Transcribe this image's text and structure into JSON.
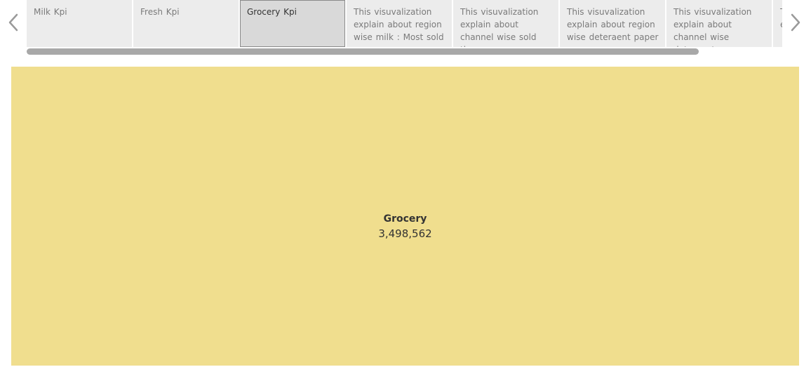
{
  "story": {
    "points": [
      {
        "label": "Milk Kpi",
        "active": false
      },
      {
        "label": "Fresh Kpi",
        "active": false
      },
      {
        "label": "Grocery Kpi",
        "active": true
      },
      {
        "label": "This visuvalization explain about  region wise milk : Most sold",
        "active": false
      },
      {
        "label": " This visuvalization explain about  channel wise sold the",
        "active": false
      },
      {
        "label": "This visuvalization explain about  region wise  deteraent paper",
        "active": false
      },
      {
        "label": "This visuvalization explain about  channel wise deteraent paper",
        "active": false
      },
      {
        "label": "This visuvalization explain",
        "active": false
      }
    ],
    "prev_icon": "chevron-left-icon",
    "next_icon": "chevron-right-icon"
  },
  "chart_data": {
    "type": "treemap",
    "items": [
      {
        "label": "Grocery",
        "value": 3498562,
        "value_label": "3,498,562",
        "color": "#f0de8e"
      }
    ]
  },
  "colors": {
    "tile": "#f0de8e",
    "story_point_bg": "#ececec",
    "story_point_active_bg": "#d9d9d9",
    "scrollbar": "#a8a8a8",
    "arrow": "#9a9a9a"
  }
}
